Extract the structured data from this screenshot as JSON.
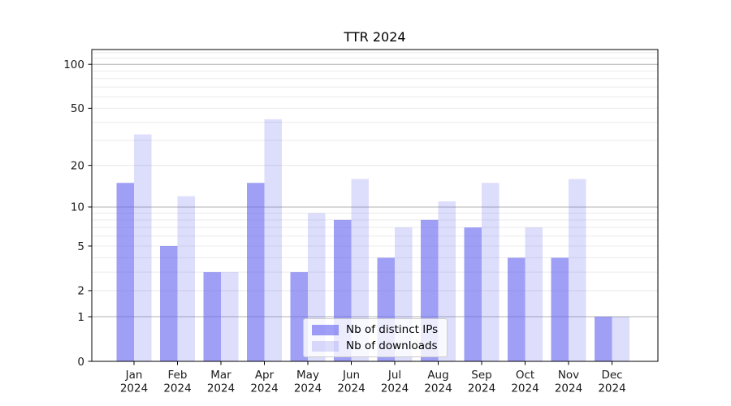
{
  "chart_data": {
    "type": "bar",
    "title": "TTR 2024",
    "categories": [
      "Jan",
      "Feb",
      "Mar",
      "Apr",
      "May",
      "Jun",
      "Jul",
      "Aug",
      "Sep",
      "Oct",
      "Nov",
      "Dec"
    ],
    "year_label": "2024",
    "series": [
      {
        "name": "Nb of distinct IPs",
        "color": "rgba(100,100,240,0.62)",
        "values": [
          15,
          5,
          3,
          15,
          3,
          8,
          4,
          8,
          7,
          4,
          4,
          1
        ]
      },
      {
        "name": "Nb of downloads",
        "color": "rgba(100,100,240,0.22)",
        "values": [
          33,
          12,
          3,
          42,
          9,
          16,
          7,
          11,
          15,
          7,
          16,
          1
        ]
      }
    ],
    "xlabel": "",
    "ylabel": "",
    "yscale": "log1p",
    "yticks": [
      0,
      1,
      2,
      5,
      10,
      20,
      50,
      100
    ],
    "major_gridlines": [
      1,
      10,
      100
    ],
    "minor_gridlines": [
      2,
      3,
      4,
      6,
      7,
      8,
      9,
      20,
      30,
      40,
      60,
      70,
      80,
      90,
      110,
      120
    ],
    "ylim": [
      0,
      127
    ],
    "grid": true,
    "legend_position": "lower center",
    "colors": {
      "major_grid": "#b0b0b0",
      "minor_grid": "#ebebeb",
      "spine": "#000000",
      "tick_text": "#1a1a1a"
    }
  }
}
